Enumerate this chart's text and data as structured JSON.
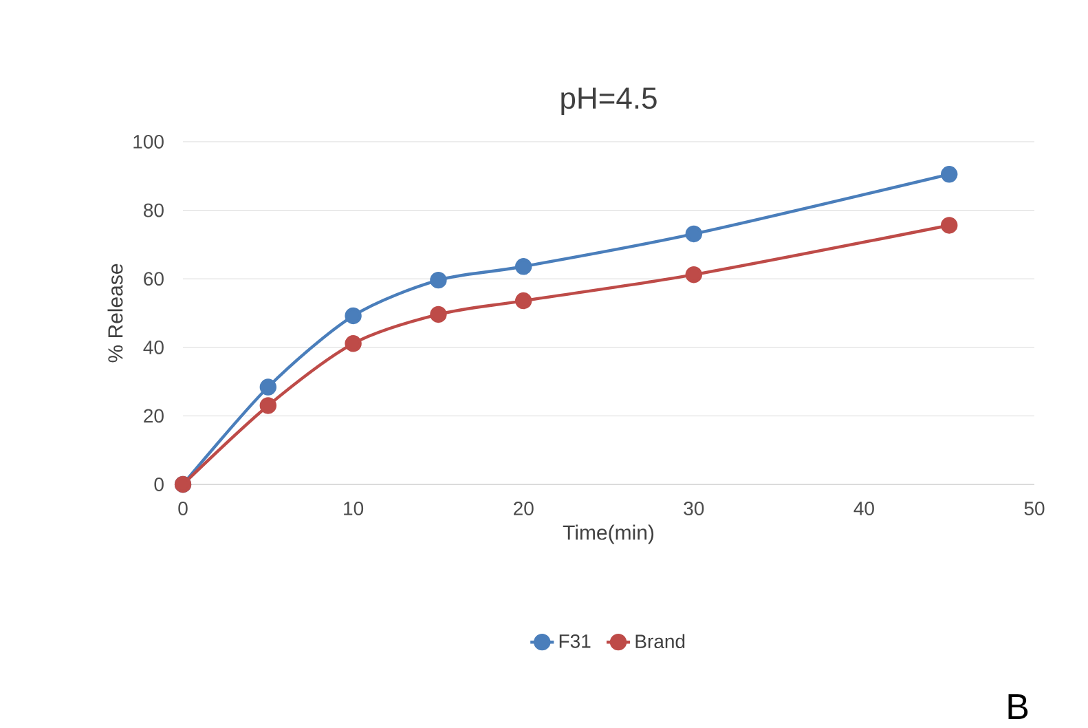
{
  "chart_data": {
    "type": "line",
    "title": "pH=4.5",
    "xlabel": "Time(min)",
    "ylabel": "% Release",
    "x": [
      0,
      5,
      10,
      15,
      20,
      30,
      45
    ],
    "series": [
      {
        "name": "F31",
        "color": "#4a7ebb",
        "values": [
          0,
          28.4,
          49.2,
          59.6,
          63.6,
          73.1,
          90.5
        ]
      },
      {
        "name": "Brand",
        "color": "#be4b48",
        "values": [
          0,
          23.0,
          41.1,
          49.6,
          53.6,
          61.2,
          75.6
        ]
      }
    ],
    "xlim": [
      0,
      50
    ],
    "xticks": [
      0,
      10,
      20,
      30,
      40,
      50
    ],
    "ylim": [
      0,
      100
    ],
    "yticks": [
      0,
      20,
      40,
      60,
      80,
      100
    ],
    "grid": "y",
    "legend": "bottom",
    "marker": "circle",
    "line_style": "solid",
    "annotations": [
      "B"
    ]
  }
}
